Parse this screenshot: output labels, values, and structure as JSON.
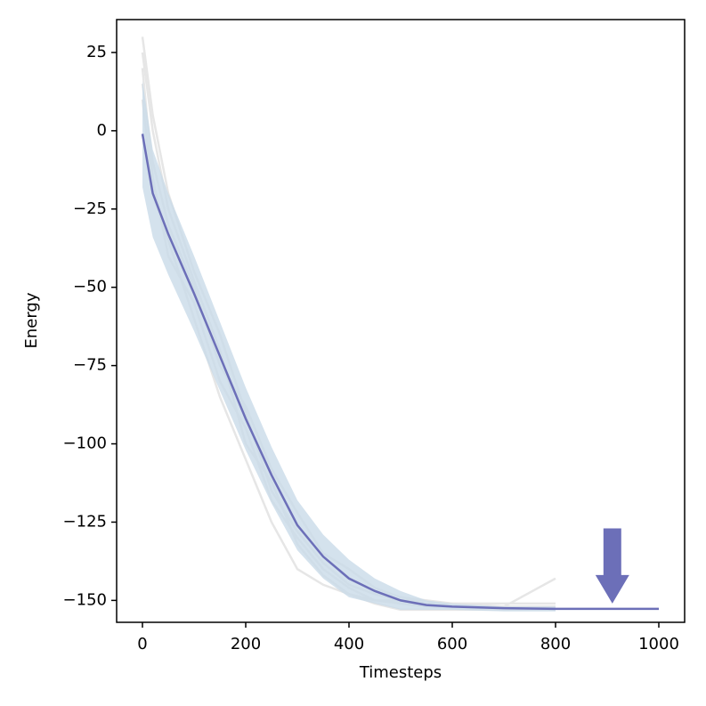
{
  "chart_data": {
    "type": "line",
    "xlabel": "Timesteps",
    "ylabel": "Energy",
    "x": [
      0,
      20,
      50,
      100,
      150,
      200,
      250,
      300,
      350,
      400,
      450,
      500,
      550,
      600,
      700,
      800,
      1000
    ],
    "xlim": [
      -50,
      1050
    ],
    "ylim": [
      -157,
      35.5
    ],
    "xticks": [
      0,
      200,
      400,
      600,
      800,
      1000
    ],
    "yticks": [
      {
        "value": 25,
        "label": "25"
      },
      {
        "value": 0,
        "label": "0"
      },
      {
        "value": -25,
        "label": "−25"
      },
      {
        "value": -50,
        "label": "−50"
      },
      {
        "value": -75,
        "label": "−75"
      },
      {
        "value": -100,
        "label": "−100"
      },
      {
        "value": -125,
        "label": "−125"
      },
      {
        "value": -150,
        "label": "−150"
      }
    ],
    "runs_color": "#e6e6e6",
    "runs": [
      [
        30,
        5,
        -20,
        -45,
        -65,
        -90,
        -115,
        -128,
        -138,
        -145,
        -148,
        -150,
        -150,
        -151,
        -151,
        -151,
        null
      ],
      [
        20,
        -15,
        -40,
        -55,
        -80,
        -95,
        -118,
        -130,
        -140,
        -146,
        -150,
        -151,
        -152,
        -152,
        -152,
        -143,
        null
      ],
      [
        25,
        0,
        -25,
        -48,
        -70,
        -100,
        -112,
        -132,
        -142,
        -148,
        -151,
        -153,
        -153,
        -153,
        -153,
        -153,
        null
      ],
      [
        10,
        -20,
        -35,
        -60,
        -85,
        -105,
        -125,
        -140,
        -145,
        -148,
        -150,
        -150,
        -151,
        -151,
        -152,
        -152,
        null
      ],
      [
        15,
        -10,
        -30,
        -50,
        -75,
        -88,
        -108,
        -122,
        -135,
        -140,
        -146,
        -149,
        -150,
        -152,
        -152,
        -152,
        null
      ]
    ],
    "band": {
      "color": "#c9dbe8",
      "upper": [
        16,
        -6,
        -20,
        -40,
        -61,
        -82,
        -101,
        -118,
        -129,
        -137,
        -143,
        -147,
        -150,
        -151,
        -152,
        -152,
        null
      ],
      "lower": [
        -18,
        -34,
        -46,
        -64,
        -83,
        -102,
        -119,
        -134,
        -143,
        -149,
        -151,
        -153,
        -153,
        -153,
        -153.5,
        -153.5,
        null
      ]
    },
    "mean": {
      "color": "#6c6fb8",
      "values": [
        -1,
        -20,
        -33,
        -52,
        -72,
        -92,
        -110,
        -126,
        -136,
        -143,
        -147,
        -150,
        -151.5,
        -152,
        -152.5,
        -152.7,
        -152.7
      ]
    },
    "arrow": {
      "x": 910,
      "y_start": -127,
      "y_end": -151,
      "color": "#6c6fb8"
    }
  }
}
